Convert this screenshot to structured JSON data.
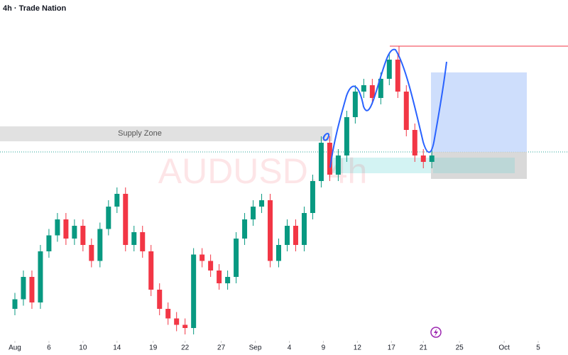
{
  "chart_data": {
    "type": "candlestick",
    "title": "4h · Trade Nation",
    "watermark": "AUDUSD, 4h",
    "annotation": "Supply Zone",
    "x": [
      0,
      4,
      8,
      12,
      16,
      20,
      24,
      28,
      32,
      36,
      40,
      44,
      48,
      52,
      56,
      60,
      64,
      68,
      72,
      76,
      80,
      84,
      88,
      92,
      96,
      100,
      104,
      108,
      112,
      116,
      120,
      124,
      128,
      132,
      136,
      140,
      144,
      148,
      152,
      156,
      160,
      164,
      168,
      172,
      176,
      180,
      184,
      188,
      192,
      196
    ],
    "open": [
      10,
      13,
      20,
      12,
      28,
      33,
      38,
      32,
      36,
      30,
      25,
      35,
      42,
      46,
      30,
      34,
      28,
      16,
      10,
      7,
      5,
      4,
      27,
      25,
      22,
      18,
      20,
      32,
      38,
      42,
      44,
      25,
      30,
      36,
      30,
      40,
      50,
      62,
      52,
      58,
      70,
      78,
      80,
      76,
      82,
      88,
      78,
      66,
      58,
      56
    ],
    "high": [
      15,
      22,
      22,
      30,
      35,
      40,
      40,
      38,
      38,
      32,
      37,
      44,
      48,
      48,
      36,
      36,
      30,
      18,
      12,
      9,
      7,
      29,
      29,
      27,
      24,
      22,
      34,
      40,
      44,
      46,
      46,
      32,
      38,
      38,
      42,
      52,
      64,
      64,
      60,
      72,
      80,
      82,
      82,
      84,
      90,
      90,
      80,
      68,
      60,
      60
    ],
    "low": [
      8,
      11,
      10,
      10,
      26,
      31,
      30,
      30,
      28,
      23,
      23,
      33,
      40,
      28,
      28,
      26,
      14,
      8,
      5,
      3,
      2,
      2,
      23,
      20,
      16,
      16,
      18,
      30,
      36,
      40,
      23,
      23,
      28,
      28,
      28,
      38,
      48,
      50,
      50,
      56,
      68,
      76,
      74,
      74,
      80,
      76,
      64,
      56,
      54,
      54
    ],
    "close": [
      13,
      20,
      12,
      28,
      33,
      38,
      32,
      36,
      30,
      25,
      35,
      42,
      46,
      30,
      34,
      28,
      16,
      10,
      7,
      5,
      4,
      27,
      25,
      22,
      18,
      20,
      32,
      38,
      42,
      44,
      25,
      30,
      36,
      30,
      40,
      50,
      62,
      52,
      58,
      70,
      78,
      80,
      76,
      82,
      88,
      78,
      66,
      58,
      56,
      58
    ],
    "up_color": "#089981",
    "down_color": "#f23645",
    "xlim": [
      -7,
      260
    ],
    "ylim": [
      0,
      100
    ],
    "xticks": [
      {
        "value": 0,
        "label": "Aug"
      },
      {
        "value": 16,
        "label": "6"
      },
      {
        "value": 32,
        "label": "10"
      },
      {
        "value": 48,
        "label": "14"
      },
      {
        "value": 65,
        "label": "19"
      },
      {
        "value": 80,
        "label": "22"
      },
      {
        "value": 97,
        "label": "27"
      },
      {
        "value": 113,
        "label": "Sep"
      },
      {
        "value": 129,
        "label": "4"
      },
      {
        "value": 145,
        "label": "9"
      },
      {
        "value": 161,
        "label": "12"
      },
      {
        "value": 177,
        "label": "17"
      },
      {
        "value": 192,
        "label": "21"
      },
      {
        "value": 209,
        "label": "25"
      },
      {
        "value": 230,
        "label": "Oct"
      },
      {
        "value": 246,
        "label": "5"
      }
    ]
  }
}
